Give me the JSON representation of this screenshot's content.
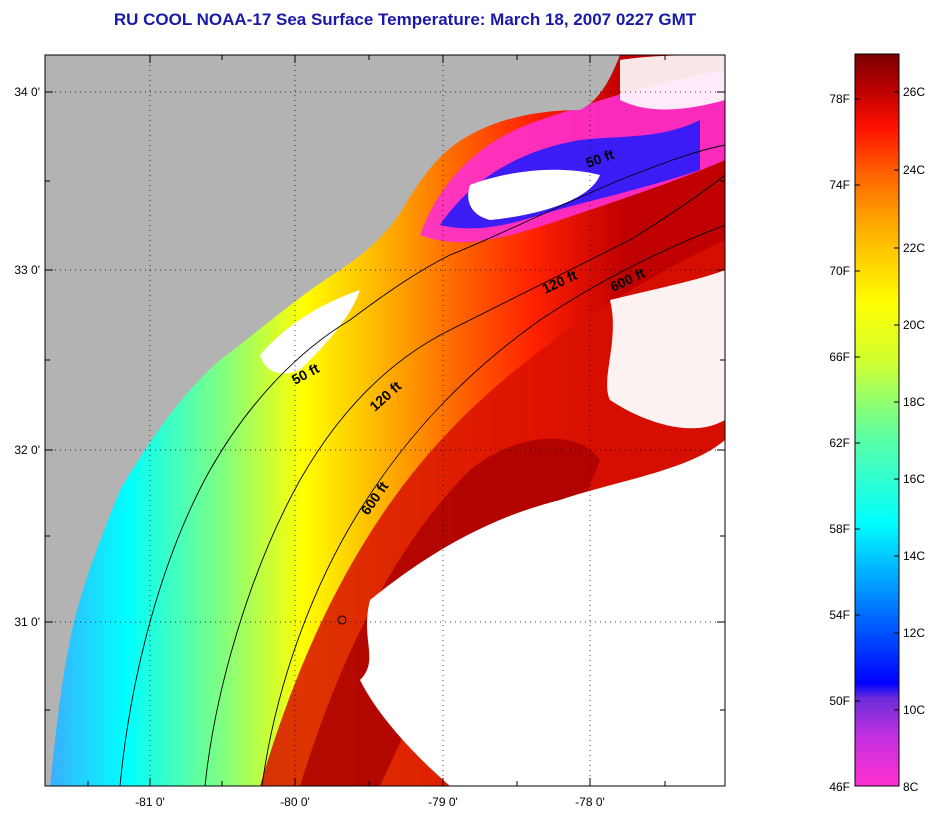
{
  "title": "RU COOL  NOAA-17  Sea Surface Temperature:  March 18, 2007 0227 GMT",
  "map": {
    "lat_labels": [
      "34 0'",
      "33 0'",
      "32 0'",
      "31 0'"
    ],
    "lon_labels": [
      "-81 0'",
      "-80 0'",
      "-79 0'",
      "-78 0'"
    ],
    "contours": [
      {
        "label": "50 ft"
      },
      {
        "label": "120 ft"
      },
      {
        "label": "600 ft"
      }
    ],
    "contour_labels": [
      "50 ft",
      "50 ft",
      "120 ft",
      "120 ft",
      "600 ft",
      "600 ft"
    ]
  },
  "colorbar": {
    "fahrenheit_labels": [
      "78F",
      "74F",
      "70F",
      "66F",
      "62F",
      "58F",
      "54F",
      "50F",
      "46F"
    ],
    "celsius_labels": [
      "26C",
      "24C",
      "22C",
      "20C",
      "18C",
      "16C",
      "14C",
      "12C",
      "10C",
      "8C"
    ],
    "colors": [
      "#ff2fd0",
      "#8a2be2",
      "#0000ff",
      "#0080ff",
      "#00ffff",
      "#60ffb0",
      "#c0ff40",
      "#ffff00",
      "#ffb000",
      "#ff6a00",
      "#ff0000",
      "#b00000",
      "#7a0000"
    ]
  },
  "legend_colors": {
    "land": "#b3b3b3",
    "no_data": "#ffffff",
    "cold": "#ff2fd0",
    "warm": "#7a0000"
  }
}
